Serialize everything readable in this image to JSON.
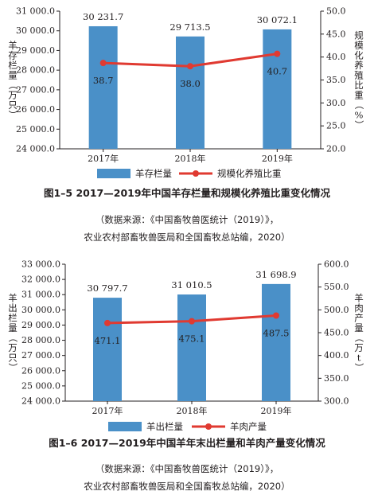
{
  "colors": {
    "bar": "#4a90c8",
    "line": "#e03a31",
    "axis": "#231f20"
  },
  "chart_data": [
    {
      "type": "bar",
      "categories": [
        "2017年",
        "2018年",
        "2019年"
      ],
      "series": [
        {
          "name": "羊存栏量",
          "type": "bar",
          "axis": "left",
          "values": [
            30231.7,
            29713.5,
            30072.1
          ],
          "labels": [
            "30 231.7",
            "29 713.5",
            "30 072.1"
          ]
        },
        {
          "name": "规模化养殖比重",
          "type": "line",
          "axis": "right",
          "values": [
            38.7,
            38.0,
            40.7
          ],
          "labels": [
            "38.7",
            "38.0",
            "40.7"
          ]
        }
      ],
      "ylabel": "羊存栏量（万只）",
      "y2label": "规模化养殖比重（%）",
      "ylim": [
        24000,
        31000
      ],
      "y2lim": [
        20,
        50
      ],
      "yticks": [
        "24 000.0",
        "25 000.0",
        "26 000.0",
        "27 000.0",
        "28 000.0",
        "29 000.0",
        "30 000.0",
        "31 000.0"
      ],
      "y2ticks": [
        "20.0",
        "25.0",
        "30.0",
        "35.0",
        "40.0",
        "45.0",
        "50.0"
      ],
      "legend": "bottom",
      "caption": "图1–5   2017—2019年中国羊存栏量和规模化养殖比重变化情况",
      "source_line1": "（数据来源：《中国畜牧兽医统计（2019）》，",
      "source_line2": "农业农村部畜牧兽医局和全国畜牧总站编，2020）"
    },
    {
      "type": "bar",
      "categories": [
        "2017年",
        "2018年",
        "2019年"
      ],
      "series": [
        {
          "name": "羊出栏量",
          "type": "bar",
          "axis": "left",
          "values": [
            30797.7,
            31010.5,
            31698.9
          ],
          "labels": [
            "30 797.7",
            "31 010.5",
            "31 698.9"
          ]
        },
        {
          "name": "羊肉产量",
          "type": "line",
          "axis": "right",
          "values": [
            471.1,
            475.1,
            487.5
          ],
          "labels": [
            "471.1",
            "475.1",
            "487.5"
          ]
        }
      ],
      "ylabel": "羊出栏量（万只）",
      "y2label": "羊肉产量（万t）",
      "ylim": [
        24000,
        33000
      ],
      "y2lim": [
        300,
        600
      ],
      "yticks": [
        "24 000.0",
        "25 000.0",
        "26 000.0",
        "27 000.0",
        "28 000.0",
        "29 000.0",
        "30 000.0",
        "31 000.0",
        "32 000.0",
        "33 000.0"
      ],
      "y2ticks": [
        "300.0",
        "350.0",
        "400.0",
        "450.0",
        "500.0",
        "550.0",
        "600.0"
      ],
      "legend": "bottom",
      "caption": "图1–6   2017—2019年中国羊年末出栏量和羊肉产量变化情况",
      "source_line1": "（数据来源：《中国畜牧兽医统计（2019）》，",
      "source_line2": "农业农村部畜牧兽医局和全国畜牧总站编，2020）"
    }
  ]
}
